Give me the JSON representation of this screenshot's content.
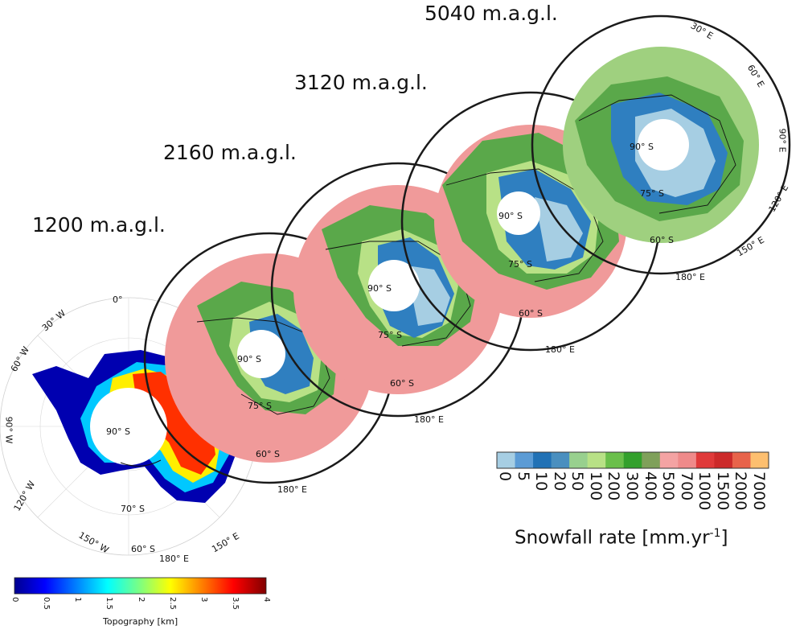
{
  "panel_titles": [
    "1200 m.a.g.l.",
    "2160 m.a.g.l.",
    "3120 m.a.g.l.",
    "5040 m.a.g.l."
  ],
  "longitude_labels": [
    "0°",
    "30° E",
    "60° E",
    "90° E",
    "120° E",
    "150° E",
    "180° E",
    "150° W",
    "120° W",
    "90° W",
    "60° W",
    "30° W"
  ],
  "latitude_labels": [
    "60° S",
    "70° S",
    "75° S",
    "90° S"
  ],
  "snowfall_colorbar": {
    "title": "Snowfall rate [mm.yr",
    "unit_exponent": "-1",
    "title_end": "]",
    "ticks": [
      "0",
      "5",
      "10",
      "20",
      "50",
      "100",
      "200",
      "300",
      "400",
      "500",
      "700",
      "1000",
      "1500",
      "2000",
      "7000"
    ],
    "colors": [
      "#a6cee3",
      "#5b9bd5",
      "#2171b5",
      "#4a8fbf",
      "#98d08e",
      "#b8e186",
      "#6abf4b",
      "#33a02c",
      "#7fa05a",
      "#f4a3a3",
      "#ef8a8a",
      "#e03a3a",
      "#cc2a2a",
      "#e8634a",
      "#fdbf6f"
    ]
  },
  "topography_colorbar": {
    "title": "Topography [km]",
    "ticks": [
      "0",
      "0.5",
      "1",
      "1.5",
      "2",
      "2.5",
      "3",
      "3.5",
      "4"
    ],
    "range": [
      0,
      4
    ]
  },
  "colors": {
    "ocean_ring_pink": "#f09a9a",
    "ocean_ring_green": "#9fd07f",
    "ice_blue": "#2f7fc0",
    "ice_light_blue": "#a6cee3",
    "mid_green": "#4aa83a"
  }
}
